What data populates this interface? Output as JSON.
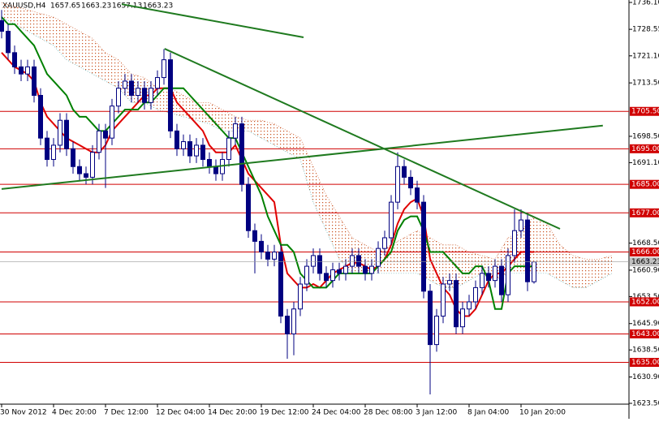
{
  "chart_data": {
    "type": "candlestick",
    "title": "XAUUSD,H4",
    "ylim": [
      1623.5,
      1736.1
    ],
    "yticks": [
      {
        "value": 1736.1,
        "label": "1736.10"
      },
      {
        "value": 1728.55,
        "label": "1728.55"
      },
      {
        "value": 1721.1,
        "label": "1721.10"
      },
      {
        "value": 1713.5,
        "label": "1713.50"
      },
      {
        "value": 1698.5,
        "label": "1698.50"
      },
      {
        "value": 1691.1,
        "label": "1691.10"
      },
      {
        "value": 1668.5,
        "label": "1668.50"
      },
      {
        "value": 1660.9,
        "label": "1660.90"
      },
      {
        "value": 1653.5,
        "label": "1653.50"
      },
      {
        "value": 1645.9,
        "label": "1645.90"
      },
      {
        "value": 1638.5,
        "label": "1638.50"
      },
      {
        "value": 1630.9,
        "label": "1630.90"
      },
      {
        "value": 1623.5,
        "label": "1623.50"
      }
    ],
    "categories": [
      "30 Nov 2012",
      null,
      null,
      null,
      null,
      null,
      null,
      null,
      "4 Dec 20:00",
      null,
      null,
      null,
      null,
      null,
      null,
      null,
      "7 Dec 12:00",
      null,
      null,
      null,
      null,
      null,
      null,
      null,
      "12 Dec 04:00",
      null,
      null,
      null,
      null,
      null,
      null,
      null,
      "14 Dec 20:00",
      null,
      null,
      null,
      null,
      null,
      null,
      null,
      "19 Dec 12:00",
      null,
      null,
      null,
      null,
      null,
      null,
      null,
      "24 Dec 04:00",
      null,
      null,
      null,
      null,
      null,
      null,
      null,
      "28 Dec 08:00",
      null,
      null,
      null,
      null,
      null,
      null,
      null,
      "3 Jan 12:00",
      null,
      null,
      null,
      null,
      null,
      null,
      null,
      "8 Jan 04:00",
      null,
      null,
      null,
      null,
      null,
      null,
      null,
      "10 Jan 20:00",
      null,
      null
    ],
    "open": [
      1731,
      1728,
      1722,
      1718,
      1716,
      1718,
      1710,
      1698,
      1692,
      1696,
      1703,
      1695,
      1690,
      1688,
      1687,
      1694,
      1700,
      1698,
      1707,
      1712,
      1714,
      1710,
      1712,
      1708,
      1712,
      1715,
      1720,
      1700,
      1695,
      1697,
      1693,
      1696,
      1692,
      1690,
      1688,
      1692,
      1698,
      1702,
      1685,
      1672,
      1669,
      1666,
      1664,
      1666,
      1648,
      1643,
      1650,
      1657,
      1662,
      1665,
      1660,
      1658,
      1661,
      1660,
      1662,
      1665,
      1662,
      1660,
      1662,
      1667,
      1670,
      1680,
      1690,
      1687,
      1684,
      1680,
      1655,
      1640,
      1648,
      1657,
      1658,
      1645,
      1650,
      1652,
      1656,
      1660,
      1658,
      1662,
      1654,
      1665,
      1672,
      1675,
      1657.65
    ],
    "high": [
      1734,
      1730,
      1724,
      1720,
      1720,
      1720,
      1712,
      1700,
      1698,
      1705,
      1705,
      1697,
      1692,
      1690,
      1696,
      1702,
      1702,
      1709,
      1714,
      1716,
      1716,
      1714,
      1714,
      1714,
      1717,
      1723,
      1722,
      1702,
      1699,
      1699,
      1698,
      1698,
      1694,
      1692,
      1694,
      1700,
      1704,
      1704,
      1687,
      1674,
      1671,
      1668,
      1668,
      1668,
      1650,
      1652,
      1659,
      1664,
      1667,
      1667,
      1662,
      1663,
      1663,
      1664,
      1667,
      1667,
      1664,
      1664,
      1669,
      1672,
      1682,
      1694,
      1692,
      1689,
      1686,
      1682,
      1657,
      1650,
      1659,
      1660,
      1660,
      1652,
      1654,
      1658,
      1662,
      1662,
      1664,
      1664,
      1667,
      1678,
      1678,
      1677,
      1663.23
    ],
    "low": [
      1726,
      1720,
      1716,
      1714,
      1714,
      1708,
      1696,
      1690,
      1690,
      1694,
      1693,
      1688,
      1686,
      1685,
      1685,
      1692,
      1684,
      1696,
      1705,
      1710,
      1708,
      1708,
      1706,
      1706,
      1710,
      1713,
      1698,
      1693,
      1693,
      1691,
      1691,
      1690,
      1688,
      1686,
      1686,
      1690,
      1696,
      1683,
      1670,
      1660,
      1664,
      1662,
      1662,
      1646,
      1636,
      1637,
      1648,
      1655,
      1660,
      1658,
      1656,
      1656,
      1658,
      1658,
      1660,
      1660,
      1658,
      1658,
      1660,
      1665,
      1668,
      1678,
      1685,
      1682,
      1678,
      1653,
      1626,
      1638,
      1646,
      1655,
      1643,
      1643,
      1648,
      1650,
      1654,
      1656,
      1656,
      1652,
      1652,
      1663,
      1670,
      1655,
      1657.13
    ],
    "close": [
      1728,
      1722,
      1718,
      1716,
      1718,
      1710,
      1698,
      1692,
      1696,
      1703,
      1695,
      1690,
      1688,
      1687,
      1694,
      1700,
      1698,
      1707,
      1712,
      1714,
      1710,
      1712,
      1708,
      1712,
      1715,
      1720,
      1700,
      1695,
      1697,
      1693,
      1696,
      1692,
      1690,
      1688,
      1692,
      1698,
      1702,
      1685,
      1672,
      1669,
      1666,
      1664,
      1666,
      1648,
      1643,
      1650,
      1657,
      1662,
      1665,
      1660,
      1658,
      1661,
      1660,
      1662,
      1665,
      1662,
      1660,
      1662,
      1667,
      1670,
      1680,
      1690,
      1687,
      1684,
      1680,
      1655,
      1640,
      1648,
      1657,
      1658,
      1645,
      1650,
      1652,
      1656,
      1660,
      1658,
      1662,
      1654,
      1665,
      1672,
      1675,
      1657.65,
      1663.23
    ],
    "series": [
      {
        "color": "#e00000",
        "values": [
          1722,
          1720,
          1718,
          1717,
          1716,
          1714,
          1708,
          1704,
          1702,
          1700,
          1698,
          1697,
          1696,
          1695,
          1694,
          1694,
          1696,
          1700,
          1702,
          1704,
          1706,
          1708,
          1710,
          1710,
          1712,
          1712,
          1712,
          1708,
          1706,
          1704,
          1702,
          1700,
          1696,
          1694,
          1694,
          1694,
          1696,
          1692,
          1688,
          1686,
          1684,
          1682,
          1680,
          1668,
          1660,
          1658,
          1656,
          1656,
          1657,
          1656,
          1658,
          1660,
          1661,
          1662,
          1663,
          1663,
          1662,
          1661,
          1662,
          1664,
          1668,
          1674,
          1678,
          1680,
          1681,
          1676,
          1664,
          1660,
          1656,
          1654,
          1650,
          1648,
          1648,
          1650,
          1654,
          1658,
          1660,
          1660,
          1662,
          1664,
          1666,
          1666,
          1666
        ]
      },
      {
        "color": "#008000",
        "values": [
          1732,
          1730,
          1730,
          1728,
          1726,
          1724,
          1720,
          1716,
          1714,
          1712,
          1710,
          1706,
          1704,
          1704,
          1702,
          1700,
          1700,
          1702,
          1704,
          1706,
          1706,
          1706,
          1708,
          1708,
          1710,
          1712,
          1712,
          1712,
          1712,
          1710,
          1708,
          1706,
          1704,
          1702,
          1700,
          1698,
          1698,
          1694,
          1690,
          1686,
          1682,
          1676,
          1672,
          1668,
          1668,
          1666,
          1660,
          1658,
          1656,
          1656,
          1656,
          1658,
          1660,
          1660,
          1660,
          1660,
          1660,
          1660,
          1662,
          1664,
          1666,
          1672,
          1675,
          1676,
          1676,
          1672,
          1666,
          1666,
          1666,
          1664,
          1662,
          1660,
          1660,
          1662,
          1662,
          1658,
          1650,
          1650,
          1660,
          1662,
          1662,
          1662,
          1662
        ]
      }
    ],
    "cloud": {
      "color": "#c8501e",
      "step": 2,
      "span_a": [
        1736,
        1735,
        1734,
        1733,
        1732,
        1730,
        1728,
        1726,
        1722,
        1720,
        1716,
        1715,
        1712,
        1712,
        1710,
        1708,
        1708,
        1706,
        1704,
        1703,
        1703,
        1702,
        1700,
        1698,
        1690,
        1682,
        1676,
        1670,
        1668,
        1666,
        1668,
        1670,
        1672,
        1670,
        1668,
        1668,
        1666,
        1665,
        1664,
        1670,
        1672,
        1676,
        1674,
        1668,
        1665,
        1664,
        1664,
        1665
      ],
      "span_b": [
        1732,
        1730,
        1728,
        1726,
        1724,
        1720,
        1718,
        1716,
        1714,
        1712,
        1708,
        1708,
        1706,
        1705,
        1704,
        1703,
        1702,
        1700,
        1700,
        1700,
        1698,
        1696,
        1694,
        1692,
        1680,
        1672,
        1664,
        1660,
        1660,
        1660,
        1660,
        1660,
        1660,
        1658,
        1656,
        1656,
        1658,
        1660,
        1658,
        1660,
        1660,
        1660,
        1660,
        1658,
        1656,
        1656,
        1658,
        1660
      ]
    },
    "levels": [
      {
        "value": 1705.5,
        "label": "1705.50"
      },
      {
        "value": 1695,
        "label": "1695.00"
      },
      {
        "value": 1685,
        "label": "1685.00"
      },
      {
        "value": 1677,
        "label": "1677.00"
      },
      {
        "value": 1666,
        "label": "1666.00"
      },
      {
        "value": 1652,
        "label": "1652.00"
      },
      {
        "value": 1643,
        "label": "1643.00"
      },
      {
        "value": 1635,
        "label": "1635.00"
      }
    ],
    "level_color": "#d00000",
    "last_price": 1663.23,
    "trendlines": [
      {
        "x": [
          0,
          92.6
        ],
        "y": [
          1683.7,
          1701.5
        ]
      },
      {
        "x": [
          25.1,
          86
        ],
        "y": [
          1723.1,
          1672.5
        ]
      },
      {
        "x": [
          18.5,
          46.5
        ],
        "y": [
          1735.6,
          1726.3
        ]
      }
    ],
    "trendline_color": "#1f7a1f"
  }
}
